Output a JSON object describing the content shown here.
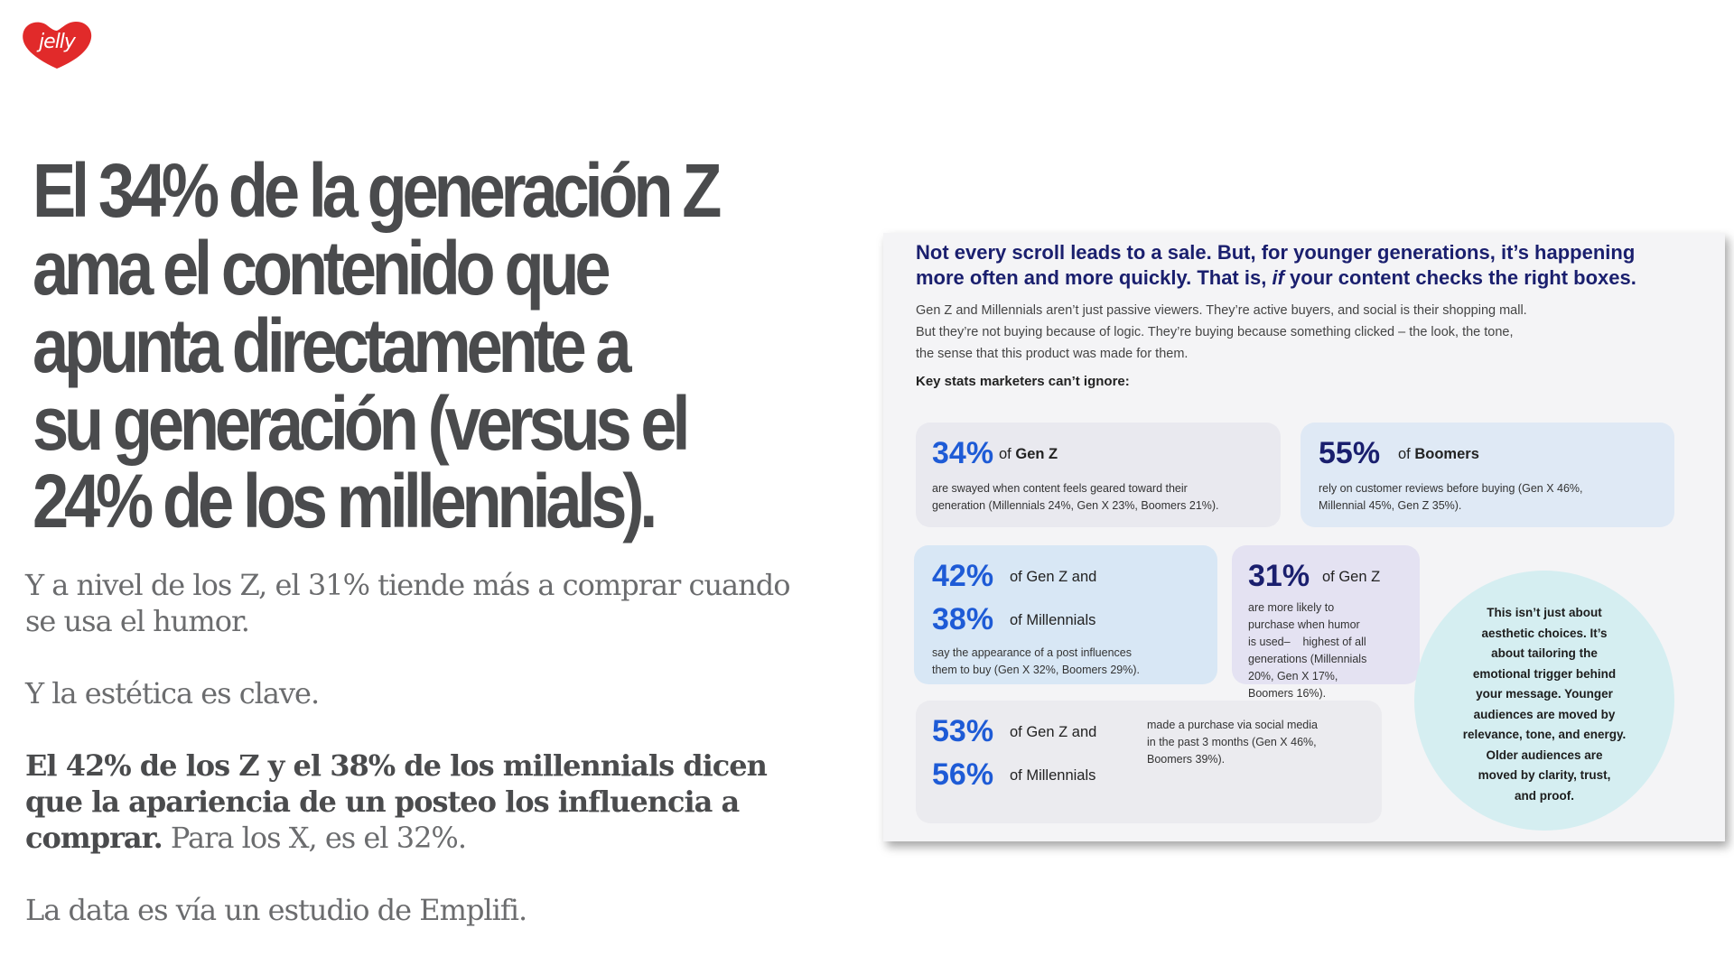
{
  "brand": {
    "logo_text": "jelly",
    "logo_color": "#e12a2a"
  },
  "headline": {
    "lines": [
      "El 34% de la generación Z",
      "ama el contenido que",
      "apunta directamente a",
      "su generación (versus el",
      "24% de los millennials)."
    ]
  },
  "body": {
    "p1": "Y a nivel de los Z, el 31% tiende más a comprar cuando se usa el humor.",
    "p2": "Y la estética es clave.",
    "p3_bold": "El 42% de los Z y el 38% de los millennials dicen que la apariencia de un posteo los influencia a comprar.",
    "p3_rest": " Para los X, es el 32%.",
    "p4": "La data es vía un estudio de Emplifi."
  },
  "infographic": {
    "heading_line1": "Not every scroll leads to a sale. But, for younger generations, it’s happening",
    "heading_line2a": "more often and more quickly. That is, ",
    "heading_line2_if": "if",
    "heading_line2b": " your content checks the right boxes.",
    "intro_line1": "Gen Z and Millennials aren’t just passive viewers. They’re active buyers, and social is their shopping mall.",
    "intro_line2": "But they’re not buying because of logic. They’re buying because something clicked – the look, the tone,",
    "intro_line3": "the sense that this product was made for them.",
    "key_label": "Key stats marketers can’t ignore:",
    "card1": {
      "pct": "34%",
      "of": "of ",
      "group": "Gen Z",
      "desc_line1": "are swayed when content feels geared toward their",
      "desc_line2": "generation (Millennials 24%, Gen X 23%, Boomers 21%)."
    },
    "card2": {
      "pct": "55%",
      "of": "of ",
      "group": "Boomers",
      "desc_line1": "rely on customer reviews before buying (Gen X 46%,",
      "desc_line2": "Millennial 45%, Gen Z 35%)."
    },
    "card3": {
      "pct1": "42%",
      "of1": "of Gen Z and",
      "pct2": "38%",
      "of2": "of Millennials",
      "desc_line1": "say the appearance of a post influences",
      "desc_line2": "them to buy (Gen X 32%, Boomers 29%)."
    },
    "card4": {
      "pct": "31%",
      "of": "of Gen Z",
      "desc_line1": "are more likely to",
      "desc_line2": "purchase when humor",
      "desc_line3": "is used–    highest of all",
      "desc_line4": "generations (Millennials",
      "desc_line5": "20%, Gen X 17%,",
      "desc_line6": "Boomers 16%)."
    },
    "card5": {
      "pct1": "53%",
      "of1": "of Gen Z and",
      "pct2": "56%",
      "of2": "of Millennials",
      "desc_line1": "made a purchase via social media",
      "desc_line2": "in the past 3 months (Gen X 46%,",
      "desc_line3": "Boomers 39%)."
    },
    "circle": {
      "line1": "This isn’t just about",
      "line2": "aesthetic choices. It’s",
      "line3": "about tailoring the",
      "line4": "emotional trigger behind",
      "line5": "your message. Younger",
      "line6": "audiences are moved by",
      "line7": "relevance, tone, and energy.",
      "line8": "Older audiences are",
      "line9": "moved by clarity, trust,",
      "line10": "and proof."
    }
  }
}
